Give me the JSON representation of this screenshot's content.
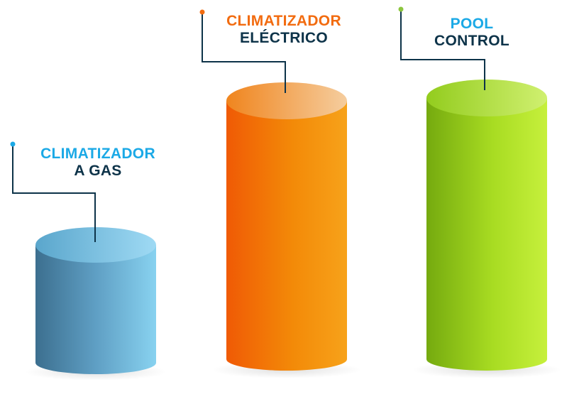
{
  "colors": {
    "blue_accent": "#1ba9e6",
    "orange_accent": "#f26b0f",
    "navy_text": "#0d3349",
    "connector": "#0d3349",
    "green_dot": "#8cc63e"
  },
  "cylinders": [
    {
      "id": "gas",
      "line1": "CLIMATIZADOR",
      "line2": "A GAS",
      "line1_color": "#1ba9e6",
      "line2_color": "#0d3349",
      "body_gradient": [
        "#3c6f8f",
        "#5f9fc4",
        "#88d2f0"
      ],
      "top_gradient": [
        "#5aa6cc",
        "#9fdaf4"
      ],
      "dot_color": "#1ba9e6"
    },
    {
      "id": "electrico",
      "line1": "CLIMATIZADOR",
      "line2": "ELÉCTRICO",
      "line1_color": "#f26b0f",
      "line2_color": "#0d3349",
      "body_gradient": [
        "#f05a05",
        "#f38a08",
        "#f7a21a"
      ],
      "top_gradient": [
        "#f0851e",
        "#f5cd9e"
      ],
      "dot_color": "#f26b0f"
    },
    {
      "id": "pool",
      "line1": "POOL",
      "line2": "CONTROL",
      "line1_color": "#1ba9e6",
      "line2_color": "#0d3349",
      "body_gradient": [
        "#75aa0f",
        "#a8dc22",
        "#c6f03c"
      ],
      "top_gradient": [
        "#93cc1e",
        "#d0f070"
      ],
      "dot_color": "#8cc63e"
    }
  ]
}
